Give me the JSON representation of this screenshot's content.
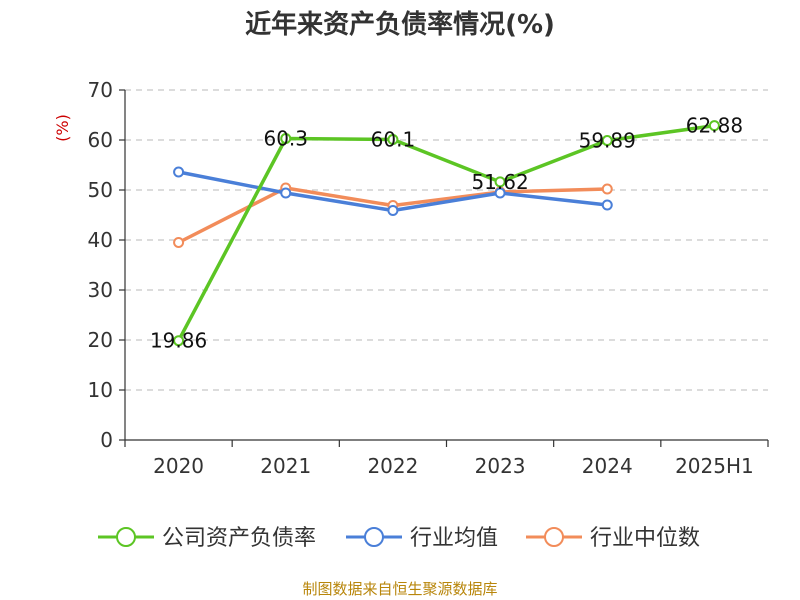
{
  "chart_data": {
    "type": "line",
    "title": "近年来资产负债率情况(%)",
    "ylabel": "(%)",
    "categories": [
      "2020",
      "2021",
      "2022",
      "2023",
      "2024",
      "2025H1"
    ],
    "ylim": [
      0,
      70
    ],
    "yticks": [
      0,
      10,
      20,
      30,
      40,
      50,
      60,
      70
    ],
    "grid": true,
    "legend_position": "bottom",
    "series": [
      {
        "name": "公司资产负债率",
        "color": "#5cc524",
        "values": [
          19.86,
          60.3,
          60.1,
          51.62,
          59.89,
          62.88
        ],
        "labels": [
          "19.86",
          "60.3",
          "60.1",
          "51.62",
          "59.89",
          "62.88"
        ]
      },
      {
        "name": "行业均值",
        "color": "#4a7fd8",
        "values": [
          53.6,
          49.4,
          45.9,
          49.4,
          47.0,
          null
        ]
      },
      {
        "name": "行业中位数",
        "color": "#f28c5a",
        "values": [
          39.5,
          50.4,
          46.9,
          49.6,
          50.2,
          null
        ]
      }
    ]
  },
  "footer": {
    "source": "制图数据来自恒生聚源数据库"
  }
}
